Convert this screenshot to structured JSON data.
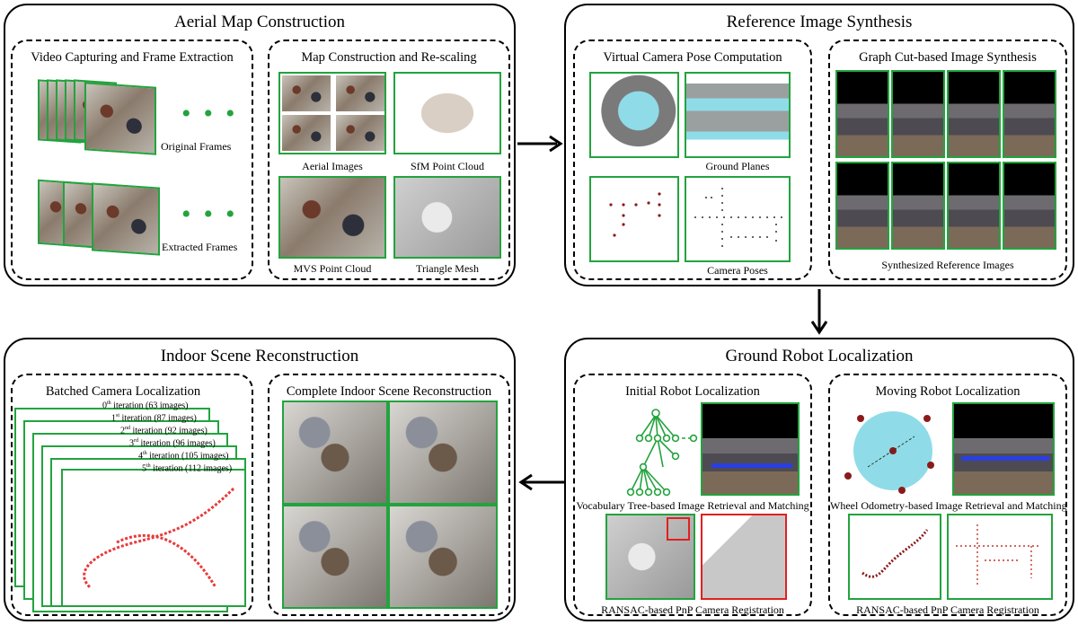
{
  "panels": {
    "aerial": {
      "title": "Aerial Map Construction",
      "video": {
        "title": "Video Capturing and Frame Extraction",
        "original": "Original Frames",
        "extracted": "Extracted Frames"
      },
      "map": {
        "title": "Map Construction and Re-scaling",
        "aerial_images": "Aerial Images",
        "sfm": "SfM Point Cloud",
        "mvs": "MVS Point Cloud",
        "mesh": "Triangle Mesh"
      }
    },
    "reference": {
      "title": "Reference Image Synthesis",
      "virtual": {
        "title": "Virtual Camera Pose Computation",
        "ground_planes": "Ground Planes",
        "camera_poses": "Camera Poses"
      },
      "graphcut": {
        "title": "Graph Cut-based Image Synthesis",
        "synth": "Synthesized Reference Images"
      }
    },
    "indoor": {
      "title": "Indoor Scene Reconstruction",
      "batched": {
        "title": "Batched Camera Localization",
        "iterations": [
          {
            "ord": "0",
            "sup": "th",
            "text": " iteration (63 images)"
          },
          {
            "ord": "1",
            "sup": "st",
            "text": " iteration (87 images)"
          },
          {
            "ord": "2",
            "sup": "nd",
            "text": " iteration (92 images)"
          },
          {
            "ord": "3",
            "sup": "rd",
            "text": " iteration (96 images)"
          },
          {
            "ord": "4",
            "sup": "th",
            "text": " iteration (105 images)"
          },
          {
            "ord": "5",
            "sup": "th",
            "text": " iteration (112 images)"
          }
        ]
      },
      "complete": {
        "title": "Complete Indoor Scene Reconstruction"
      }
    },
    "robot": {
      "title": "Ground Robot Localization",
      "initial": {
        "title": "Initial Robot Localization",
        "vocab": "Vocabulary Tree-based Image Retrieval and Matching",
        "pnp": "RANSAC-based PnP Camera Registration"
      },
      "moving": {
        "title": "Moving Robot Localization",
        "wheel": "Wheel Odometry-based Image Retrieval and Matching",
        "pnp": "RANSAC-based PnP Camera Registration"
      }
    }
  },
  "colors": {
    "frame_green": "#23a33e",
    "highlight_red": "#e02020",
    "ground_cyan": "#8fdce8",
    "pose_dark_red": "#8b1a1a",
    "track_blue": "#2a3fe0"
  },
  "icons": [
    "ellipsis-dots",
    "arrow-right",
    "arrow-down",
    "arrow-left",
    "vocabulary-tree"
  ]
}
